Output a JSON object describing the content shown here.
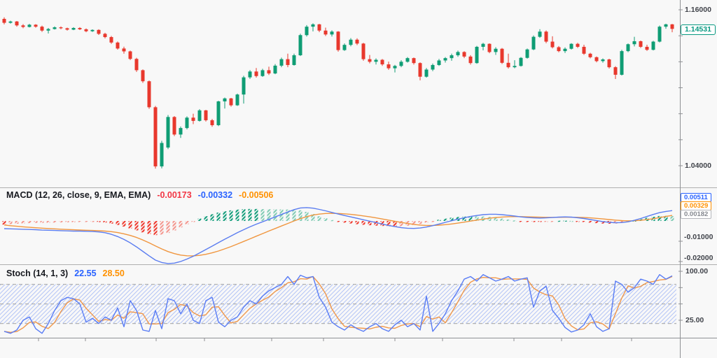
{
  "colors": {
    "background": "#f8f8f8",
    "candle_up": "#0f9d74",
    "candle_down": "#e8382d",
    "macd_line": "#5b7df0",
    "signal_line": "#f0963f",
    "hist_up_strong": "#159e7c",
    "hist_up_weak": "#82ccb5",
    "hist_down_strong": "#ef3b30",
    "hist_down_weak": "#f4978f",
    "stoch_k": "#5a7df5",
    "stoch_d": "#f1984a",
    "stoch_band_hatch": "#a8bcf5",
    "band_dash": "#a9a9a9",
    "axis_line": "#8f9194",
    "divider": "#b0b0b0",
    "value_red": "#f23645",
    "value_blue": "#2962ff",
    "value_orange": "#ff9100",
    "value_gray": "#85888f",
    "label_text": "#41444b"
  },
  "price_pane": {
    "axis_top_label": "1.16000",
    "axis_bottom_label": "1.04000",
    "last_price_label": "1.14531"
  },
  "macd_pane": {
    "title": "MACD (12, 26, close, 9, EMA, EMA)",
    "hist_value": "-0.00173",
    "macd_value": "-0.00332",
    "signal_value": "-0.00506",
    "badges": [
      "0.00511",
      "0.00329",
      "0.00182"
    ],
    "axis_labels": [
      "-0.01000",
      "-0.02000"
    ]
  },
  "stoch_pane": {
    "title": "Stoch (14, 1, 3)",
    "k_value": "22.55",
    "d_value": "28.50",
    "axis_labels": [
      "100.00",
      "25.00"
    ]
  },
  "chart_data": [
    {
      "type": "candlestick",
      "pane": "price",
      "ylim": [
        1.04,
        1.16
      ],
      "axis_tick_step": 0.02,
      "ohlc": [
        [
          1.153,
          1.1542,
          1.1488,
          1.15
        ],
        [
          1.15,
          1.1516,
          1.1494,
          1.151
        ],
        [
          1.151,
          1.1514,
          1.147,
          1.148
        ],
        [
          1.148,
          1.149,
          1.1458,
          1.1468
        ],
        [
          1.1468,
          1.1492,
          1.1464,
          1.1485
        ],
        [
          1.1485,
          1.149,
          1.1462,
          1.147
        ],
        [
          1.147,
          1.1478,
          1.143,
          1.144
        ],
        [
          1.144,
          1.146,
          1.1418,
          1.1452
        ],
        [
          1.1452,
          1.1472,
          1.1448,
          1.1465
        ],
        [
          1.1465,
          1.1472,
          1.145,
          1.1458
        ],
        [
          1.1458,
          1.1463,
          1.144,
          1.1447
        ],
        [
          1.1447,
          1.1466,
          1.1443,
          1.146
        ],
        [
          1.146,
          1.1466,
          1.1444,
          1.145
        ],
        [
          1.145,
          1.1457,
          1.1427,
          1.1435
        ],
        [
          1.1435,
          1.1449,
          1.143,
          1.1445
        ],
        [
          1.1445,
          1.145,
          1.1406,
          1.1415
        ],
        [
          1.1415,
          1.1423,
          1.138,
          1.139
        ],
        [
          1.139,
          1.1399,
          1.1338,
          1.1348
        ],
        [
          1.1348,
          1.1356,
          1.1293,
          1.1302
        ],
        [
          1.1302,
          1.1316,
          1.1262,
          1.128
        ],
        [
          1.128,
          1.1286,
          1.1213,
          1.1222
        ],
        [
          1.1222,
          1.1231,
          1.1122,
          1.1135
        ],
        [
          1.1135,
          1.1141,
          1.1038,
          1.105
        ],
        [
          1.105,
          1.1056,
          1.0838,
          1.085
        ],
        [
          1.085,
          1.086,
          1.0378,
          1.0395
        ],
        [
          1.0395,
          1.0592,
          1.038,
          1.0575
        ],
        [
          1.054,
          1.079,
          1.0528,
          1.0775
        ],
        [
          1.0775,
          1.0782,
          1.0628,
          1.064
        ],
        [
          1.064,
          1.0702,
          1.0614,
          1.069
        ],
        [
          1.069,
          1.078,
          1.068,
          1.077
        ],
        [
          1.077,
          1.08,
          1.072,
          1.0745
        ],
        [
          1.0745,
          1.0835,
          1.074,
          1.0826
        ],
        [
          1.0826,
          1.083,
          1.074,
          1.075
        ],
        [
          1.075,
          1.076,
          1.07,
          1.0712
        ],
        [
          1.0712,
          1.09,
          1.0705,
          1.0895
        ],
        [
          1.0895,
          1.0925,
          1.084,
          1.0918
        ],
        [
          1.0918,
          1.0922,
          1.0855,
          1.0865
        ],
        [
          1.0865,
          1.0955,
          1.086,
          1.0948
        ],
        [
          1.0948,
          1.1092,
          1.0878,
          1.108
        ],
        [
          1.108,
          1.1136,
          1.1068,
          1.1125
        ],
        [
          1.1125,
          1.1152,
          1.1078,
          1.109
        ],
        [
          1.109,
          1.1146,
          1.1084,
          1.1135
        ],
        [
          1.1135,
          1.1162,
          1.1098,
          1.111
        ],
        [
          1.111,
          1.1182,
          1.1104,
          1.117
        ],
        [
          1.117,
          1.1232,
          1.1158,
          1.122
        ],
        [
          1.122,
          1.1262,
          1.1158,
          1.1175
        ],
        [
          1.1175,
          1.1262,
          1.117,
          1.125
        ],
        [
          1.125,
          1.1416,
          1.1244,
          1.1405
        ],
        [
          1.1405,
          1.1482,
          1.1394,
          1.147
        ],
        [
          1.147,
          1.1496,
          1.1434,
          1.1488
        ],
        [
          1.1488,
          1.1492,
          1.1428,
          1.144
        ],
        [
          1.144,
          1.1463,
          1.1398,
          1.141
        ],
        [
          1.141,
          1.1442,
          1.1394,
          1.1432
        ],
        [
          1.1432,
          1.1436,
          1.1278,
          1.129
        ],
        [
          1.129,
          1.1341,
          1.1284,
          1.133
        ],
        [
          1.133,
          1.1382,
          1.1319,
          1.137
        ],
        [
          1.137,
          1.1381,
          1.1328,
          1.134
        ],
        [
          1.134,
          1.1346,
          1.1208,
          1.122
        ],
        [
          1.122,
          1.1252,
          1.1188,
          1.12
        ],
        [
          1.12,
          1.1226,
          1.1179,
          1.1215
        ],
        [
          1.1215,
          1.1221,
          1.1168,
          1.118
        ],
        [
          1.118,
          1.1201,
          1.1138,
          1.115
        ],
        [
          1.115,
          1.1176,
          1.1118,
          1.1168
        ],
        [
          1.1168,
          1.1212,
          1.1158,
          1.12
        ],
        [
          1.12,
          1.1236,
          1.1194,
          1.1228
        ],
        [
          1.1228,
          1.1233,
          1.1178,
          1.119
        ],
        [
          1.119,
          1.1196,
          1.1057,
          1.1085
        ],
        [
          1.1085,
          1.1152,
          1.1078,
          1.114
        ],
        [
          1.114,
          1.1186,
          1.1128,
          1.1175
        ],
        [
          1.1175,
          1.1222,
          1.1168,
          1.121
        ],
        [
          1.121,
          1.1236,
          1.1194,
          1.1228
        ],
        [
          1.1228,
          1.1262,
          1.1208,
          1.125
        ],
        [
          1.125,
          1.1286,
          1.1238,
          1.1275
        ],
        [
          1.1275,
          1.1281,
          1.1228,
          1.124
        ],
        [
          1.124,
          1.1251,
          1.1178,
          1.119
        ],
        [
          1.119,
          1.1322,
          1.1184,
          1.1315
        ],
        [
          1.1315,
          1.1346,
          1.1288,
          1.1338
        ],
        [
          1.1338,
          1.1342,
          1.1266,
          1.1275
        ],
        [
          1.1275,
          1.1312,
          1.1253,
          1.13
        ],
        [
          1.13,
          1.1306,
          1.1183,
          1.1192
        ],
        [
          1.1192,
          1.1262,
          1.1148,
          1.1158
        ],
        [
          1.1158,
          1.1212,
          1.115,
          1.1168
        ],
        [
          1.1168,
          1.1236,
          1.1163,
          1.123
        ],
        [
          1.123,
          1.1302,
          1.1224,
          1.1295
        ],
        [
          1.1295,
          1.1402,
          1.1289,
          1.1392
        ],
        [
          1.1392,
          1.1451,
          1.1384,
          1.1432
        ],
        [
          1.1432,
          1.1441,
          1.1343,
          1.1355
        ],
        [
          1.1355,
          1.1396,
          1.1303,
          1.1312
        ],
        [
          1.1312,
          1.1321,
          1.1273,
          1.1282
        ],
        [
          1.1282,
          1.1311,
          1.1268,
          1.13
        ],
        [
          1.13,
          1.1343,
          1.1294,
          1.1338
        ],
        [
          1.1338,
          1.1346,
          1.1306,
          1.1315
        ],
        [
          1.1315,
          1.1331,
          1.1253,
          1.1262
        ],
        [
          1.1262,
          1.1269,
          1.1226,
          1.1235
        ],
        [
          1.1235,
          1.1241,
          1.1196,
          1.1205
        ],
        [
          1.1205,
          1.1226,
          1.1193,
          1.1218
        ],
        [
          1.1218,
          1.1223,
          1.1148,
          1.1158
        ],
        [
          1.1158,
          1.1166,
          1.1067,
          1.11
        ],
        [
          1.11,
          1.1292,
          1.1094,
          1.1282
        ],
        [
          1.1282,
          1.1341,
          1.1274,
          1.1335
        ],
        [
          1.1335,
          1.1392,
          1.1318,
          1.1358
        ],
        [
          1.1358,
          1.1363,
          1.1306,
          1.1315
        ],
        [
          1.1315,
          1.1331,
          1.1284,
          1.1292
        ],
        [
          1.1292,
          1.1361,
          1.1287,
          1.1355
        ],
        [
          1.1355,
          1.1479,
          1.1349,
          1.147
        ],
        [
          1.147,
          1.1493,
          1.1454,
          1.1488
        ],
        [
          1.1488,
          1.1491,
          1.1427,
          1.14531
        ]
      ]
    },
    {
      "type": "line",
      "pane": "macd",
      "ylim": [
        -0.022,
        0.016
      ],
      "axis_ticks": [
        -0.01,
        -0.02
      ],
      "signal_derivation": {
        "method": "EMA",
        "alpha": 0.18,
        "seed_offset": 0.0022
      },
      "macd": [
        -0.0038,
        -0.0039,
        -0.004,
        -0.0041,
        -0.0042,
        -0.0043,
        -0.0045,
        -0.0046,
        -0.0047,
        -0.0048,
        -0.0049,
        -0.005,
        -0.005,
        -0.0051,
        -0.0052,
        -0.0054,
        -0.0058,
        -0.0066,
        -0.0077,
        -0.0091,
        -0.0108,
        -0.0128,
        -0.015,
        -0.0172,
        -0.0193,
        -0.0205,
        -0.021,
        -0.0208,
        -0.02,
        -0.0188,
        -0.0174,
        -0.0158,
        -0.0141,
        -0.0124,
        -0.0107,
        -0.009,
        -0.0074,
        -0.0058,
        -0.0043,
        -0.0029,
        -0.0016,
        -0.0004,
        0.0008,
        0.002,
        0.0032,
        0.0044,
        0.0056,
        0.0064,
        0.0066,
        0.0063,
        0.0057,
        0.005,
        0.0042,
        0.0034,
        0.0027,
        0.002,
        0.0013,
        0.0006,
        -0.0001,
        -0.0008,
        -0.0015,
        -0.0022,
        -0.0028,
        -0.0033,
        -0.0036,
        -0.0037,
        -0.0035,
        -0.003,
        -0.0023,
        -0.0015,
        -0.0007,
        0.0001,
        0.0009,
        0.0016,
        0.0022,
        0.0027,
        0.0031,
        0.0033,
        0.0033,
        0.0031,
        0.0028,
        0.0024,
        0.002,
        0.0017,
        0.0015,
        0.0014,
        0.0015,
        0.0017,
        0.0019,
        0.002,
        0.0019,
        0.0016,
        0.0012,
        0.0007,
        0.0002,
        -0.0003,
        -0.0007,
        -0.0009,
        -0.0008,
        -0.0004,
        0.0003,
        0.0012,
        0.0022,
        0.0032,
        0.0041,
        0.0047,
        0.00511
      ]
    },
    {
      "type": "line",
      "pane": "stoch",
      "ylim": [
        0,
        100
      ],
      "bands": [
        80,
        50,
        20
      ],
      "axis_ticks": [
        100,
        75,
        50,
        25
      ],
      "d_smoothing": 3,
      "k": [
        8,
        5,
        10,
        25,
        30,
        12,
        5,
        20,
        40,
        55,
        60,
        58,
        50,
        22,
        28,
        20,
        30,
        25,
        44,
        15,
        55,
        40,
        10,
        8,
        40,
        12,
        58,
        55,
        35,
        50,
        25,
        20,
        55,
        60,
        22,
        15,
        25,
        30,
        45,
        55,
        50,
        62,
        70,
        75,
        80,
        92,
        80,
        94,
        90,
        92,
        60,
        45,
        22,
        15,
        10,
        18,
        12,
        8,
        15,
        20,
        12,
        8,
        18,
        25,
        15,
        20,
        10,
        62,
        8,
        20,
        35,
        55,
        70,
        88,
        92,
        85,
        95,
        90,
        85,
        88,
        92,
        85,
        88,
        90,
        45,
        70,
        77,
        40,
        28,
        14,
        7,
        10,
        18,
        35,
        15,
        8,
        12,
        85,
        80,
        68,
        75,
        88,
        85,
        80,
        95,
        88,
        93
      ]
    }
  ]
}
